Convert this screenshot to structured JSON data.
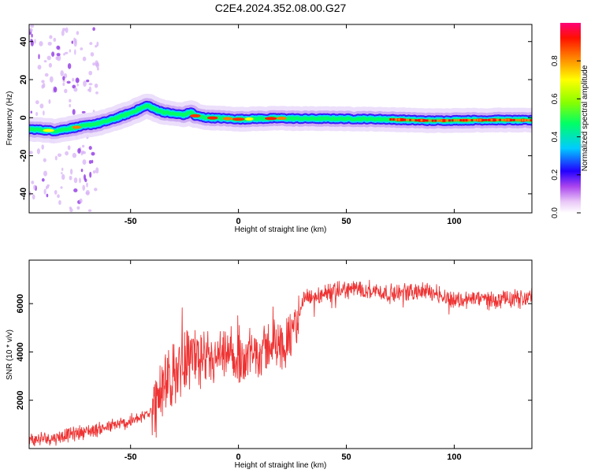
{
  "figure": {
    "title": "C2E4.2024.352.08.00.G27"
  },
  "chart_data": [
    {
      "type": "heatmap",
      "panel": "spectrogram",
      "xlabel": "Height of straight line (km)",
      "ylabel": "Frequency (Hz)",
      "xlim": [
        -97,
        136
      ],
      "ylim": [
        -50,
        49
      ],
      "xticks": [
        -50,
        0,
        50,
        100
      ],
      "yticks": [
        -40,
        -20,
        0,
        20,
        40
      ],
      "ridge": {
        "x": [
          -97,
          -90,
          -85,
          -80,
          -75,
          -70,
          -65,
          -60,
          -55,
          -50,
          -45,
          -42,
          -40,
          -35,
          -30,
          -25,
          -22,
          -20,
          -15,
          -10,
          -5,
          0,
          10,
          20,
          30,
          40,
          50,
          60,
          70,
          80,
          90,
          100,
          110,
          120,
          136
        ],
        "y": [
          -6,
          -6.5,
          -7,
          -6,
          -5,
          -4,
          -3,
          -1.5,
          0.5,
          2.5,
          5,
          6.5,
          5,
          3,
          2,
          1.5,
          3,
          1,
          0,
          -0.2,
          -0.5,
          -0.8,
          -0.5,
          -0.3,
          -0.5,
          -0.5,
          -0.6,
          -0.7,
          -0.9,
          -1.3,
          -1.6,
          -1.4,
          -1.3,
          -1.2,
          -1.4
        ]
      },
      "colorbar": {
        "label": "Normalized spectral amplitude",
        "ticks": [
          "0.0",
          "0.2",
          "0.4",
          "0.6",
          "0.8"
        ],
        "range": [
          0,
          1
        ],
        "colors": [
          "#ffffff",
          "#cc66ff",
          "#0000ff",
          "#00ffff",
          "#00ff00",
          "#ffff00",
          "#ff7f00",
          "#ff0000",
          "#ff0066"
        ]
      }
    },
    {
      "type": "line",
      "panel": "snr",
      "xlabel": "Height of straight line (km)",
      "ylabel": "SNR (10 * v/v)",
      "xlim": [
        -97,
        136
      ],
      "ylim": [
        0,
        7800
      ],
      "xticks": [
        -50,
        0,
        50,
        100
      ],
      "yticks": [
        2000,
        4000,
        6000
      ],
      "color": "#ee3333",
      "series": [
        {
          "x": [
            -97,
            -85,
            -75,
            -65,
            -55,
            -45,
            -40,
            -35,
            -30,
            -25,
            -20,
            -15,
            -10,
            -5,
            0,
            5,
            10,
            15,
            20,
            25,
            30,
            40,
            50,
            60,
            70,
            80,
            90,
            100,
            110,
            120,
            130,
            136
          ],
          "y": [
            350,
            450,
            650,
            800,
            1000,
            1250,
            1700,
            2400,
            3000,
            3800,
            3900,
            3300,
            3700,
            3700,
            3700,
            3800,
            4000,
            4300,
            4300,
            4600,
            6200,
            6350,
            6600,
            6600,
            6400,
            6500,
            6500,
            6150,
            6200,
            6150,
            6200,
            6300
          ]
        }
      ]
    }
  ]
}
